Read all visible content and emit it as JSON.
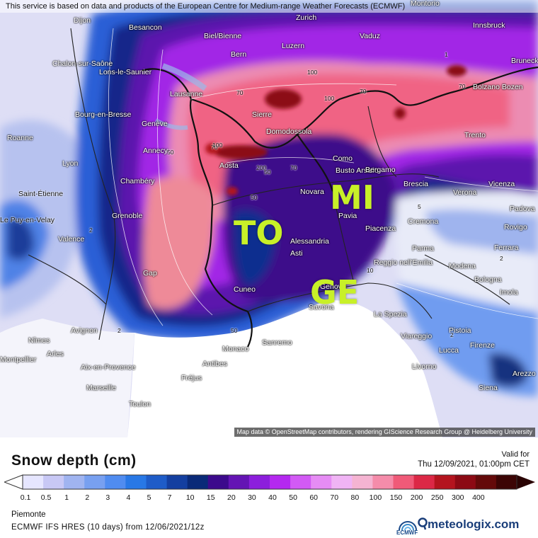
{
  "banner": "This service is based on data and products of the European Centre for Medium-range Weather Forecasts (ECMWF)",
  "attribution": "Map data © OpenStreetMap contributors, rendering GIScience Research Group @ Heidelberg University",
  "cities": [
    {
      "name": "Dijon"
    },
    {
      "name": "Besancon"
    },
    {
      "name": "Biel/Bienne"
    },
    {
      "name": "Zurich"
    },
    {
      "name": "Vaduz"
    },
    {
      "name": "Innsbruck"
    },
    {
      "name": "Bern"
    },
    {
      "name": "Luzern"
    },
    {
      "name": "Chalon-sur-Saône"
    },
    {
      "name": "Lons-le-Saunier"
    },
    {
      "name": "Lausanne"
    },
    {
      "name": "Sierre"
    },
    {
      "name": "Bolzano Bozen"
    },
    {
      "name": "Bruneck Brunico"
    },
    {
      "name": "Bourg-en-Bresse"
    },
    {
      "name": "Genève"
    },
    {
      "name": "Domodossola"
    },
    {
      "name": "Trento"
    },
    {
      "name": "Roanne"
    },
    {
      "name": "Annecy"
    },
    {
      "name": "Como"
    },
    {
      "name": "Lyon"
    },
    {
      "name": "Aosta"
    },
    {
      "name": "Busto Arsizio"
    },
    {
      "name": "Bergamo"
    },
    {
      "name": "Chambéry"
    },
    {
      "name": "Brescia"
    },
    {
      "name": "Vicenza"
    },
    {
      "name": "Saint-Étienne"
    },
    {
      "name": "Novara"
    },
    {
      "name": "Verona"
    },
    {
      "name": "Padova"
    },
    {
      "name": "Le Puy-en-Velay"
    },
    {
      "name": "Grenoble"
    },
    {
      "name": "Pavia"
    },
    {
      "name": "Cremona"
    },
    {
      "name": "Rovigo"
    },
    {
      "name": "Valence"
    },
    {
      "name": "Piacenza"
    },
    {
      "name": "Alessandria"
    },
    {
      "name": "Parma"
    },
    {
      "name": "Ferrara"
    },
    {
      "name": "Asti"
    },
    {
      "name": "Reggio nell'Emilia"
    },
    {
      "name": "Modena"
    },
    {
      "name": "Gap"
    },
    {
      "name": "Bologna"
    },
    {
      "name": "Cuneo"
    },
    {
      "name": "Genova"
    },
    {
      "name": "Imola"
    },
    {
      "name": "Savona"
    },
    {
      "name": "La Spezia"
    },
    {
      "name": "Avignon"
    },
    {
      "name": "Viareggio"
    },
    {
      "name": "Pistoia"
    },
    {
      "name": "Nîmes"
    },
    {
      "name": "Monaco"
    },
    {
      "name": "Sanremo"
    },
    {
      "name": "Lucca"
    },
    {
      "name": "Firenze"
    },
    {
      "name": "Arles"
    },
    {
      "name": "Montpellier"
    },
    {
      "name": "Antibes"
    },
    {
      "name": "Aix-en-Provence"
    },
    {
      "name": "Livorno"
    },
    {
      "name": "Arezzo"
    },
    {
      "name": "Fréjus"
    },
    {
      "name": "Marseille"
    },
    {
      "name": "Siena"
    },
    {
      "name": "Toulon"
    },
    {
      "name": "Montorio"
    }
  ],
  "overlays": {
    "to": "TO",
    "mi": "MI",
    "ge": "GE"
  },
  "contour_labels": [
    "70",
    "100",
    "70",
    "100",
    "70",
    "50",
    "70",
    "100",
    "200",
    "70",
    "50",
    "2",
    "2",
    "5",
    "2",
    "50",
    "10",
    "1",
    "2",
    "50"
  ],
  "title": "Snow depth (cm)",
  "valid_for": "Valid for",
  "valid_time": "Thu 12/09/2021, 01:00pm CET",
  "legend": {
    "ticks": [
      "0.1",
      "0.5",
      "1",
      "2",
      "3",
      "4",
      "5",
      "7",
      "10",
      "15",
      "20",
      "30",
      "40",
      "50",
      "60",
      "70",
      "80",
      "100",
      "150",
      "200",
      "250",
      "300",
      "400"
    ],
    "colors": [
      "#e6e6ff",
      "#c8c8f5",
      "#a0b4f0",
      "#78a0f0",
      "#508cf0",
      "#2878e6",
      "#1e5cc8",
      "#143fa0",
      "#0a2a78",
      "#3c0a8c",
      "#6414b4",
      "#8c1edc",
      "#b428f0",
      "#d25af5",
      "#e68cf5",
      "#f0b4f5",
      "#f5b4d2",
      "#f58caa",
      "#f05a78",
      "#dc2846",
      "#b4141e",
      "#8c0a14",
      "#640a0a",
      "#3c0505"
    ]
  },
  "region": "Piemonte",
  "model": "ECMWF IFS HRES (10 days) from 12/06/2021/12z",
  "brand": "meteologix.com",
  "brand_small": "ECMWF"
}
